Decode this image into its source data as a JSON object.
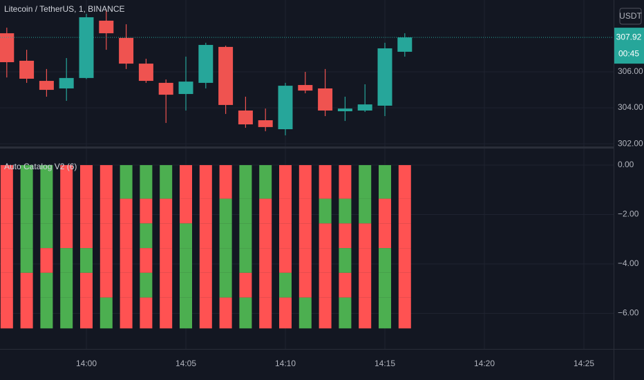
{
  "chart_data": [
    {
      "type": "candlestick",
      "title": "Litecoin / TetherUS, 1, BINANCE",
      "currency": "USDT",
      "categories": [
        null,
        null,
        null,
        null,
        "14:00",
        null,
        null,
        null,
        null,
        "14:05",
        null,
        null,
        null,
        null,
        "14:10",
        null,
        null,
        null,
        null,
        "14:15",
        null,
        null,
        null,
        null,
        "14:20",
        null,
        null,
        null,
        null,
        "14:25",
        null
      ],
      "open": [
        308.15,
        306.62,
        305.5,
        305.08,
        305.66,
        308.85,
        307.89,
        306.46,
        305.39,
        304.77,
        305.39,
        307.39,
        303.85,
        303.31,
        302.81,
        305.27,
        305.08,
        303.81,
        303.85,
        304.12,
        307.12,
        null,
        null,
        null,
        null,
        null,
        null,
        null,
        null,
        null,
        null
      ],
      "high": [
        308.46,
        307.23,
        306.16,
        306.77,
        309.23,
        309.46,
        308.65,
        306.73,
        305.58,
        306.85,
        307.62,
        307.46,
        304.62,
        303.96,
        305.39,
        306.0,
        306.16,
        304.62,
        305.31,
        307.62,
        308.15,
        null,
        null,
        null,
        null,
        null,
        null,
        null,
        null,
        null,
        null
      ],
      "low": [
        305.69,
        305.39,
        304.62,
        304.39,
        305.6,
        307.23,
        306.16,
        305.39,
        303.16,
        303.85,
        305.08,
        303.66,
        302.89,
        302.7,
        302.47,
        304.81,
        303.54,
        303.27,
        303.77,
        303.54,
        306.85,
        null,
        null,
        null,
        null,
        null,
        null,
        null,
        null,
        null,
        null
      ],
      "close": [
        306.54,
        305.62,
        305.0,
        305.66,
        309.04,
        308.15,
        306.46,
        305.5,
        304.73,
        305.46,
        307.5,
        304.16,
        303.08,
        302.93,
        305.23,
        304.96,
        303.85,
        303.96,
        304.19,
        307.31,
        307.92,
        null,
        null,
        null,
        null,
        null,
        null,
        null,
        null,
        null,
        null
      ],
      "last_label": "307.92",
      "countdown": "00:45",
      "up_color": "#26a69a",
      "down_color": "#ef5350",
      "ylim": [
        301.85,
        310
      ],
      "yticks": [
        {
          "value": 302,
          "label": "302.00"
        },
        {
          "value": 304,
          "label": "304.00"
        },
        {
          "value": 306,
          "label": "306.00"
        }
      ],
      "grid": true
    },
    {
      "type": "stacked-bar",
      "title": "Auto Catalog V2 (6)",
      "series": [
        {
          "values": [
            -1.36,
            -1.36,
            -1.36,
            -1.36,
            -1.36,
            -1.36,
            -1.36,
            -1.36,
            -1.36,
            -1.36,
            -1.36,
            -1.36,
            -1.36,
            -1.36,
            -1.36,
            -1.36,
            -1.36,
            -1.36,
            -1.36,
            -1.36,
            -1.36,
            null,
            null,
            null,
            null,
            null,
            null,
            null,
            null,
            null,
            null
          ],
          "colors": [
            "#ff5252",
            "#4caf50",
            "#4caf50",
            "#ff5252",
            "#ff5252",
            "#ff5252",
            "#4caf50",
            "#4caf50",
            "#4caf50",
            "#ff5252",
            "#ff5252",
            "#ff5252",
            "#4caf50",
            "#4caf50",
            "#ff5252",
            "#ff5252",
            "#ff5252",
            "#ff5252",
            "#4caf50",
            "#4caf50",
            "#ff5252",
            null,
            null,
            null,
            null,
            null,
            null,
            null,
            null,
            null,
            null
          ]
        },
        {
          "values": [
            -1,
            -1,
            -1,
            -1,
            -1,
            -1,
            -1,
            -1,
            -1,
            -1,
            -1,
            -1,
            -1,
            -1,
            -1,
            -1,
            -1,
            -1,
            -1,
            -1,
            -1,
            null,
            null,
            null,
            null,
            null,
            null,
            null,
            null,
            null,
            null
          ],
          "colors": [
            "#ff5252",
            "#4caf50",
            "#4caf50",
            "#ff5252",
            "#ff5252",
            "#ff5252",
            "#ff5252",
            "#ff5252",
            "#ff5252",
            "#ff5252",
            "#ff5252",
            "#4caf50",
            "#4caf50",
            "#ff5252",
            "#ff5252",
            "#ff5252",
            "#4caf50",
            "#4caf50",
            "#4caf50",
            "#ff5252",
            "#ff5252",
            null,
            null,
            null,
            null,
            null,
            null,
            null,
            null,
            null,
            null
          ]
        },
        {
          "values": [
            -1,
            -1,
            -1,
            -1,
            -1,
            -1,
            -1,
            -1,
            -1,
            -1,
            -1,
            -1,
            -1,
            -1,
            -1,
            -1,
            -1,
            -1,
            -1,
            -1,
            -1,
            null,
            null,
            null,
            null,
            null,
            null,
            null,
            null,
            null,
            null
          ],
          "colors": [
            "#ff5252",
            "#4caf50",
            "#4caf50",
            "#ff5252",
            "#ff5252",
            "#ff5252",
            "#ff5252",
            "#4caf50",
            "#ff5252",
            "#4caf50",
            "#ff5252",
            "#4caf50",
            "#4caf50",
            "#ff5252",
            "#ff5252",
            "#ff5252",
            "#ff5252",
            "#ff5252",
            "#ff5252",
            "#ff5252",
            "#ff5252",
            null,
            null,
            null,
            null,
            null,
            null,
            null,
            null,
            null,
            null
          ]
        },
        {
          "values": [
            -1,
            -1,
            -1,
            -1,
            -1,
            -1,
            -1,
            -1,
            -1,
            -1,
            -1,
            -1,
            -1,
            -1,
            -1,
            -1,
            -1,
            -1,
            -1,
            -1,
            -1,
            null,
            null,
            null,
            null,
            null,
            null,
            null,
            null,
            null,
            null
          ],
          "colors": [
            "#ff5252",
            "#4caf50",
            "#ff5252",
            "#4caf50",
            "#4caf50",
            "#ff5252",
            "#ff5252",
            "#ff5252",
            "#ff5252",
            "#4caf50",
            "#ff5252",
            "#4caf50",
            "#4caf50",
            "#ff5252",
            "#ff5252",
            "#ff5252",
            "#ff5252",
            "#4caf50",
            "#ff5252",
            "#4caf50",
            "#ff5252",
            null,
            null,
            null,
            null,
            null,
            null,
            null,
            null,
            null,
            null
          ]
        },
        {
          "values": [
            -1,
            -1,
            -1,
            -1,
            -1,
            -1,
            -1,
            -1,
            -1,
            -1,
            -1,
            -1,
            -1,
            -1,
            -1,
            -1,
            -1,
            -1,
            -1,
            -1,
            -1,
            null,
            null,
            null,
            null,
            null,
            null,
            null,
            null,
            null,
            null
          ],
          "colors": [
            "#ff5252",
            "#ff5252",
            "#4caf50",
            "#4caf50",
            "#ff5252",
            "#ff5252",
            "#ff5252",
            "#4caf50",
            "#ff5252",
            "#4caf50",
            "#ff5252",
            "#4caf50",
            "#ff5252",
            "#ff5252",
            "#4caf50",
            "#ff5252",
            "#ff5252",
            "#ff5252",
            "#ff5252",
            "#4caf50",
            "#ff5252",
            null,
            null,
            null,
            null,
            null,
            null,
            null,
            null,
            null,
            null
          ]
        },
        {
          "values": [
            -1.25,
            -1.25,
            -1.25,
            -1.25,
            -1.25,
            -1.25,
            -1.25,
            -1.25,
            -1.25,
            -1.25,
            -1.25,
            -1.25,
            -1.25,
            -1.25,
            -1.25,
            -1.25,
            -1.25,
            -1.25,
            -1.25,
            -1.25,
            -1.25,
            null,
            null,
            null,
            null,
            null,
            null,
            null,
            null,
            null,
            null
          ],
          "colors": [
            "#ff5252",
            "#ff5252",
            "#4caf50",
            "#4caf50",
            "#ff5252",
            "#4caf50",
            "#ff5252",
            "#ff5252",
            "#ff5252",
            "#4caf50",
            "#ff5252",
            "#ff5252",
            "#4caf50",
            "#ff5252",
            "#ff5252",
            "#4caf50",
            "#ff5252",
            "#4caf50",
            "#ff5252",
            "#4caf50",
            "#ff5252",
            null,
            null,
            null,
            null,
            null,
            null,
            null,
            null,
            null,
            null
          ]
        }
      ],
      "ylim": [
        -7.44,
        0.67
      ],
      "yticks": [
        {
          "value": 0,
          "label": "0.00"
        },
        {
          "value": -2,
          "label": "−2.00"
        },
        {
          "value": -4,
          "label": "−4.00"
        },
        {
          "value": -6,
          "label": "−6.00"
        }
      ],
      "grid": true
    }
  ]
}
